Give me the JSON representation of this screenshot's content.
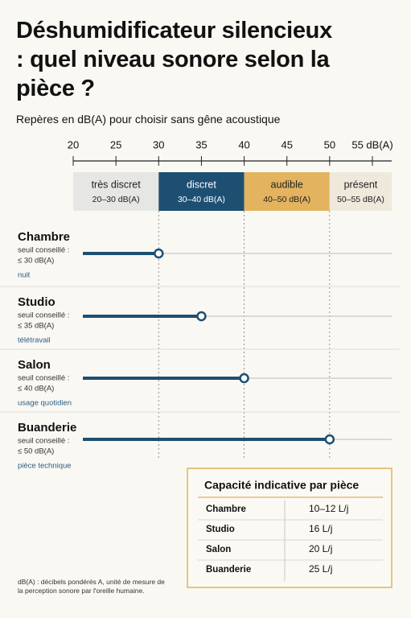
{
  "chart_data": {
    "type": "bar",
    "title": "Déshumidificateur silencieux : quel niveau sonore selon la pièce ?",
    "subtitle": "Repères en dB(A) pour choisir sans gêne acoustique",
    "xlim": [
      20,
      55
    ],
    "xticks": [
      20,
      25,
      30,
      35,
      40,
      45,
      50,
      {
        "value": 55,
        "label": "55 dB(A)"
      }
    ],
    "zones": [
      {
        "name": "très discret",
        "range_label": "20–30 dB(A)",
        "start": 20,
        "end": 30,
        "color": "#e6e6e4",
        "text_color": "#222222"
      },
      {
        "name": "discret",
        "range_label": "30–40 dB(A)",
        "start": 30,
        "end": 40,
        "color": "#1d4f73",
        "text_color": "#ffffff"
      },
      {
        "name": "audible",
        "range_label": "40–50 dB(A)",
        "start": 40,
        "end": 50,
        "color": "#e3b35f",
        "text_color": "#222222"
      },
      {
        "name": "présent",
        "range_label": "50–55 dB(A)",
        "start": 50,
        "end": 55,
        "color": "#efe9dc",
        "text_color": "#222222"
      }
    ],
    "categories": [
      "Chambre",
      "Studio",
      "Salon",
      "Buanderie"
    ],
    "value_prefix": "seuil conseillé :",
    "values": [
      30,
      35,
      40,
      50
    ],
    "value_labels": [
      "≤ 30 dB(A)",
      "≤ 35 dB(A)",
      "≤ 40 dB(A)",
      "≤ 50 dB(A)"
    ],
    "usages": [
      "nuit",
      "télétravail",
      "usage quotidien",
      "pièce technique"
    ],
    "color": "#1d4f73"
  },
  "table": {
    "title": "Capacité indicative par pièce",
    "rows": [
      [
        "Chambre",
        "10–12 L/j"
      ],
      [
        "Studio",
        "16  L/j"
      ],
      [
        "Salon",
        "20  L/j"
      ],
      [
        "Buanderie",
        "25  L/j"
      ]
    ]
  },
  "footnote": "dB(A) : décibels pondérés A, unité de mesure de la perception sonore par l'oreille humaine."
}
